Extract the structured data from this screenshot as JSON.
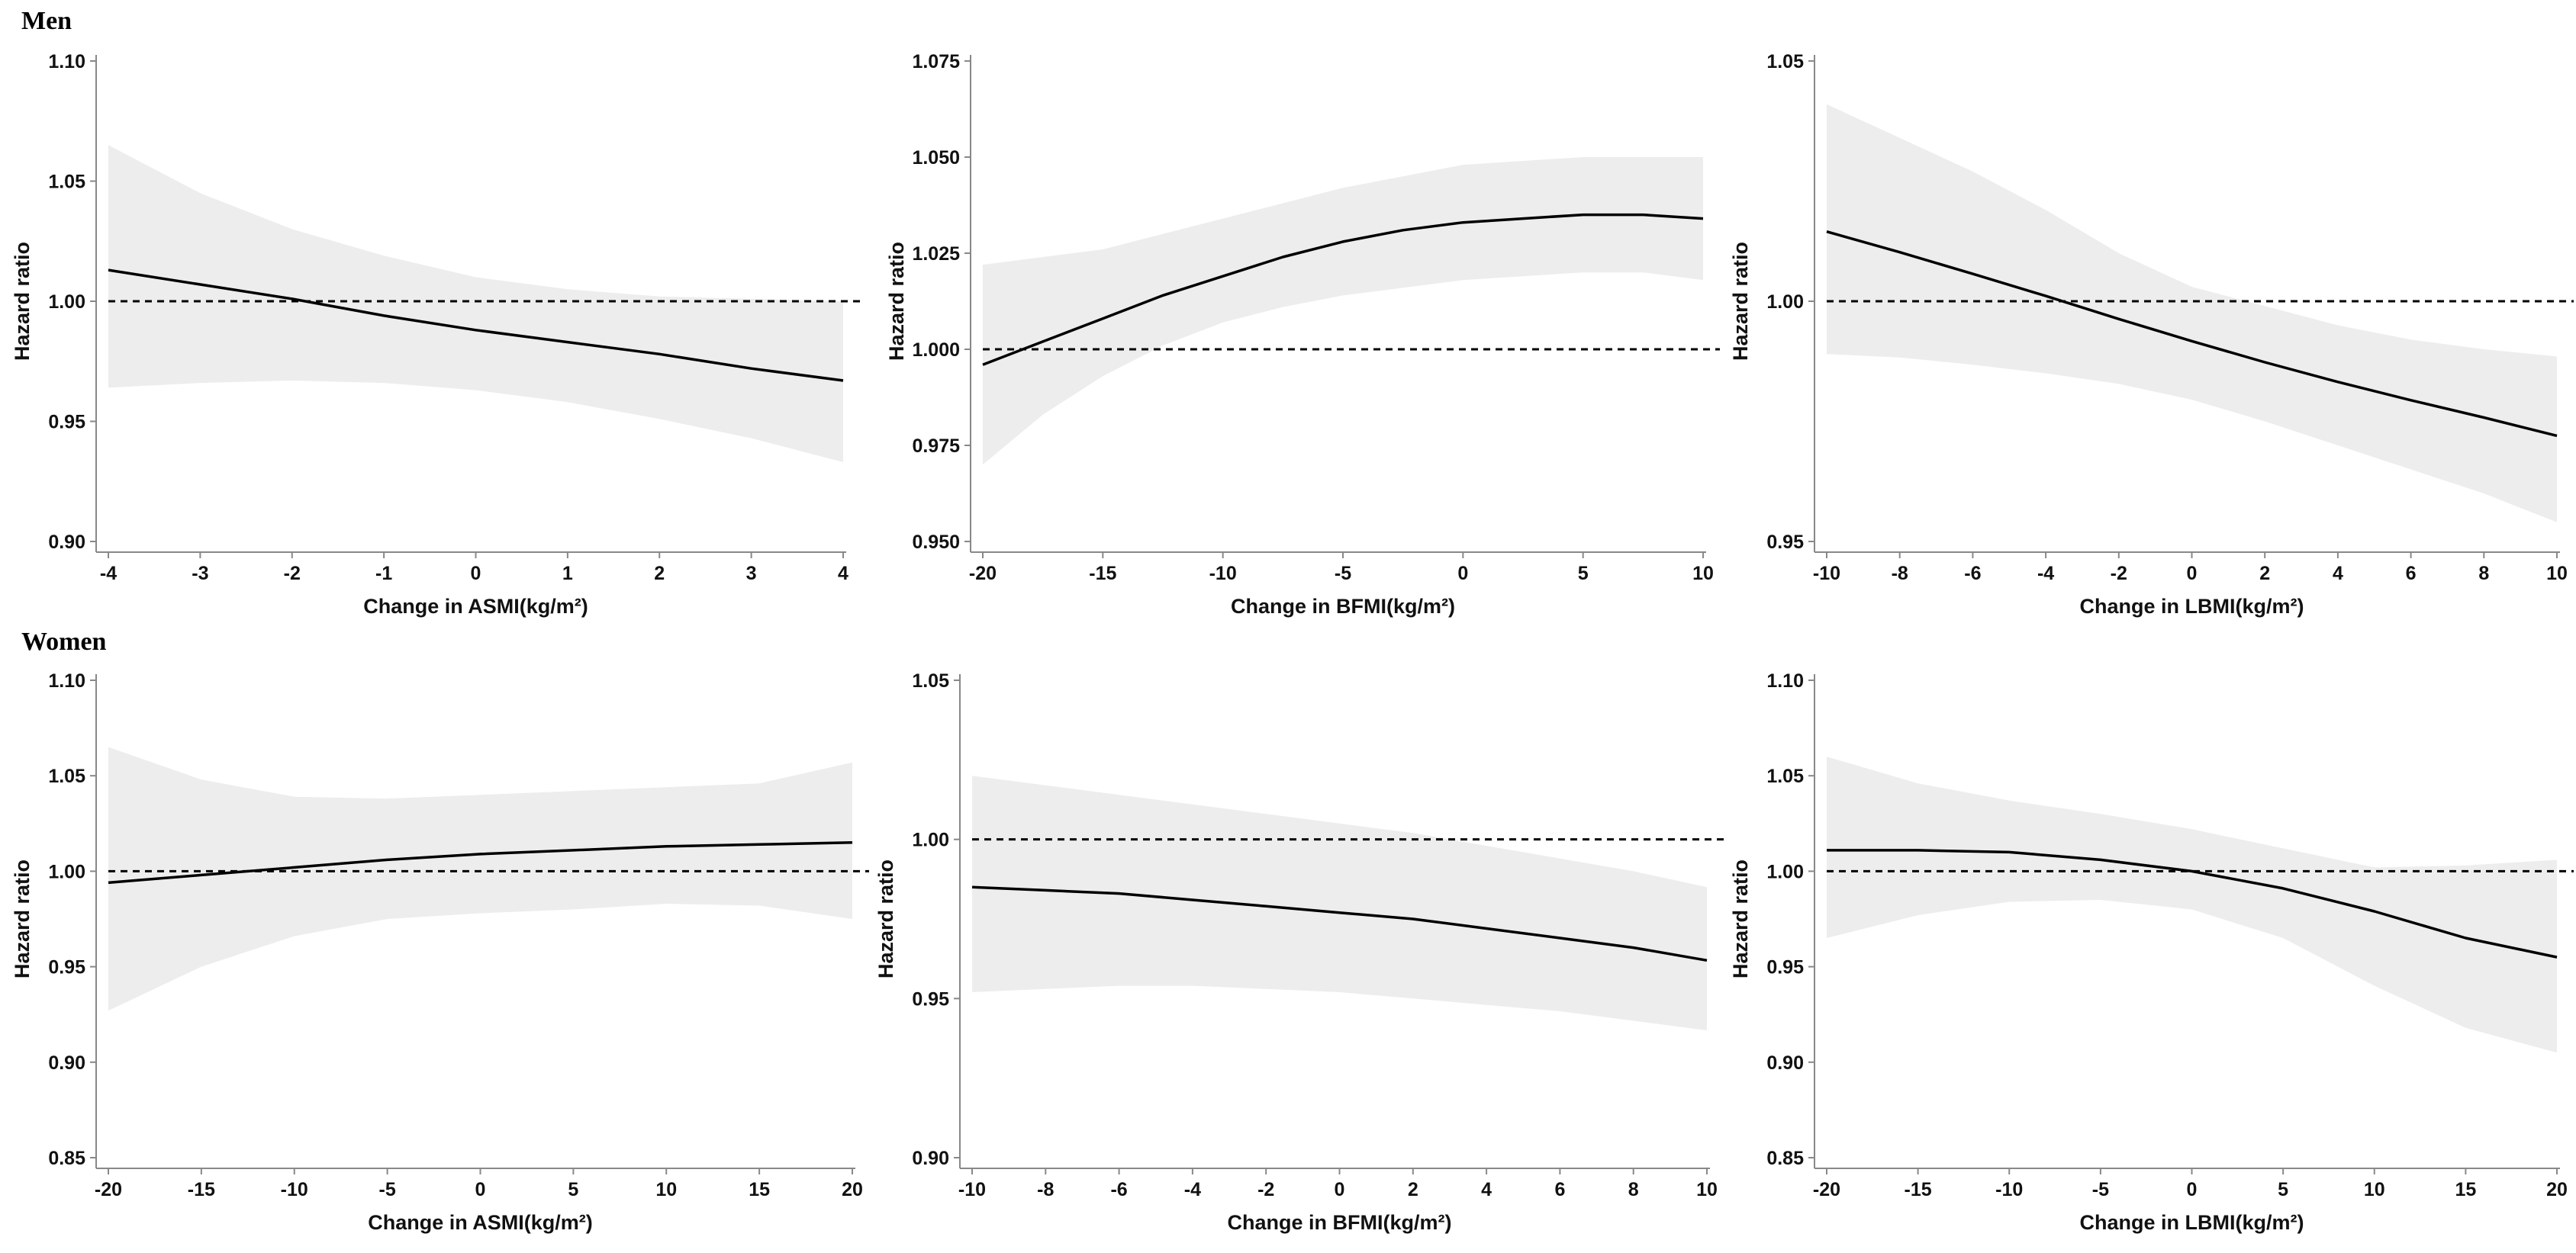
{
  "figure": {
    "groups": [
      {
        "label": "Men"
      },
      {
        "label": "Women"
      }
    ]
  },
  "colors": {
    "band": "#ededed",
    "line": "#000000",
    "axis": "#888888",
    "reference": "#000000"
  },
  "chart_data": [
    {
      "type": "line",
      "group": "Men",
      "panel": "men-asmi",
      "title": "",
      "xlabel": "Change in ASMI(kg/m²)",
      "ylabel": "Hazard ratio",
      "xlim": [
        -4,
        4
      ],
      "ylim": [
        0.9,
        1.1
      ],
      "xticks": [
        -4,
        -3,
        -2,
        -1,
        0,
        1,
        2,
        3,
        4
      ],
      "yticks": [
        "0.90",
        "0.95",
        "1.00",
        "1.05",
        "1.10"
      ],
      "reference_line": 1.0,
      "x": [
        -4,
        -3,
        -2,
        -1,
        0,
        1,
        2,
        3,
        4
      ],
      "series": [
        {
          "name": "Hazard ratio",
          "values": [
            1.013,
            1.007,
            1.001,
            0.994,
            0.988,
            0.983,
            0.978,
            0.972,
            0.967
          ]
        },
        {
          "name": "Lower 95% CI",
          "values": [
            0.964,
            0.966,
            0.967,
            0.966,
            0.963,
            0.958,
            0.951,
            0.943,
            0.933
          ]
        },
        {
          "name": "Upper 95% CI",
          "values": [
            1.065,
            1.045,
            1.03,
            1.019,
            1.01,
            1.005,
            1.002,
            1.001,
            1.0
          ]
        }
      ]
    },
    {
      "type": "line",
      "group": "Men",
      "panel": "men-bfmi",
      "title": "",
      "xlabel": "Change in BFMI(kg/m²)",
      "ylabel": "Hazard ratio",
      "xlim": [
        -20,
        10
      ],
      "ylim": [
        0.95,
        1.075
      ],
      "xticks": [
        -20,
        -15,
        -10,
        -5,
        0,
        5,
        10
      ],
      "yticks": [
        "0.950",
        "0.975",
        "1.000",
        "1.025",
        "1.050",
        "1.075"
      ],
      "reference_line": 1.0,
      "x": [
        -20,
        -17.5,
        -15,
        -12.5,
        -10,
        -7.5,
        -5,
        -2.5,
        0,
        2.5,
        5,
        7.5,
        10
      ],
      "series": [
        {
          "name": "Hazard ratio",
          "values": [
            0.996,
            1.002,
            1.008,
            1.014,
            1.019,
            1.024,
            1.028,
            1.031,
            1.033,
            1.034,
            1.035,
            1.035,
            1.034
          ]
        },
        {
          "name": "Lower 95% CI",
          "values": [
            0.97,
            0.983,
            0.993,
            1.001,
            1.007,
            1.011,
            1.014,
            1.016,
            1.018,
            1.019,
            1.02,
            1.02,
            1.018
          ]
        },
        {
          "name": "Upper 95% CI",
          "values": [
            1.022,
            1.024,
            1.026,
            1.03,
            1.034,
            1.038,
            1.042,
            1.045,
            1.048,
            1.049,
            1.05,
            1.05,
            1.05
          ]
        }
      ]
    },
    {
      "type": "line",
      "group": "Men",
      "panel": "men-lbmi",
      "title": "",
      "xlabel": "Change in LBMI(kg/m²)",
      "ylabel": "Hazard ratio",
      "xlim": [
        -10,
        10
      ],
      "ylim": [
        0.95,
        1.05
      ],
      "xticks": [
        -10,
        -8,
        -6,
        -4,
        -2,
        0,
        2,
        4,
        6,
        8,
        10
      ],
      "yticks": [
        "0.95",
        "1.00",
        "1.05"
      ],
      "reference_line": 1.0,
      "x": [
        -10,
        -8,
        -6,
        -4,
        -2,
        0,
        2,
        4,
        6,
        8,
        10
      ],
      "series": [
        {
          "name": "Hazard ratio",
          "values": [
            1.0145,
            1.0102,
            1.0057,
            1.0011,
            0.9963,
            0.9917,
            0.9873,
            0.9832,
            0.9794,
            0.9758,
            0.972
          ]
        },
        {
          "name": "Lower 95% CI",
          "values": [
            0.989,
            0.9883,
            0.9868,
            0.985,
            0.9828,
            0.9795,
            0.975,
            0.97,
            0.965,
            0.96,
            0.954
          ]
        },
        {
          "name": "Upper 95% CI",
          "values": [
            1.041,
            1.034,
            1.027,
            1.019,
            1.01,
            1.003,
            0.999,
            0.995,
            0.992,
            0.99,
            0.9885
          ]
        }
      ]
    },
    {
      "type": "line",
      "group": "Women",
      "panel": "women-asmi",
      "title": "",
      "xlabel": "Change in ASMI(kg/m²)",
      "ylabel": "Hazard ratio",
      "xlim": [
        -20,
        20
      ],
      "ylim": [
        0.85,
        1.1
      ],
      "xticks": [
        -20,
        -15,
        -10,
        -5,
        0,
        5,
        10,
        15,
        20
      ],
      "yticks": [
        "0.85",
        "0.90",
        "0.95",
        "1.00",
        "1.05",
        "1.10"
      ],
      "reference_line": 1.0,
      "x": [
        -20,
        -15,
        -10,
        -5,
        0,
        5,
        10,
        15,
        20
      ],
      "series": [
        {
          "name": "Hazard ratio",
          "values": [
            0.994,
            0.998,
            1.002,
            1.006,
            1.009,
            1.011,
            1.013,
            1.014,
            1.015
          ]
        },
        {
          "name": "Lower 95% CI",
          "values": [
            0.927,
            0.95,
            0.966,
            0.975,
            0.978,
            0.98,
            0.983,
            0.982,
            0.975
          ]
        },
        {
          "name": "Upper 95% CI",
          "values": [
            1.065,
            1.048,
            1.039,
            1.038,
            1.04,
            1.042,
            1.044,
            1.046,
            1.057
          ]
        }
      ]
    },
    {
      "type": "line",
      "group": "Women",
      "panel": "women-bfmi",
      "title": "",
      "xlabel": "Change in BFMI(kg/m²)",
      "ylabel": "Hazard ratio",
      "xlim": [
        -10,
        10
      ],
      "ylim": [
        0.9,
        1.05
      ],
      "xticks": [
        -10,
        -8,
        -6,
        -4,
        -2,
        0,
        2,
        4,
        6,
        8,
        10
      ],
      "yticks": [
        "0.90",
        "0.95",
        "1.00",
        "1.05"
      ],
      "reference_line": 1.0,
      "x": [
        -10,
        -8,
        -6,
        -4,
        -2,
        0,
        2,
        4,
        6,
        8,
        10
      ],
      "series": [
        {
          "name": "Hazard ratio",
          "values": [
            0.985,
            0.984,
            0.983,
            0.981,
            0.979,
            0.977,
            0.975,
            0.972,
            0.969,
            0.966,
            0.962
          ]
        },
        {
          "name": "Lower 95% CI",
          "values": [
            0.952,
            0.953,
            0.954,
            0.954,
            0.953,
            0.952,
            0.95,
            0.948,
            0.946,
            0.943,
            0.94
          ]
        },
        {
          "name": "Upper 95% CI",
          "values": [
            1.02,
            1.017,
            1.014,
            1.011,
            1.008,
            1.005,
            1.002,
            0.998,
            0.994,
            0.99,
            0.985
          ]
        }
      ]
    },
    {
      "type": "line",
      "group": "Women",
      "panel": "women-lbmi",
      "title": "",
      "xlabel": "Change in LBMI(kg/m²)",
      "ylabel": "Hazard ratio",
      "xlim": [
        -20,
        20
      ],
      "ylim": [
        0.85,
        1.1
      ],
      "xticks": [
        -20,
        -15,
        -10,
        -5,
        0,
        5,
        10,
        15,
        20
      ],
      "yticks": [
        "0.85",
        "0.90",
        "0.95",
        "1.00",
        "1.05",
        "1.10"
      ],
      "reference_line": 1.0,
      "x": [
        -20,
        -15,
        -10,
        -5,
        0,
        5,
        10,
        15,
        20
      ],
      "series": [
        {
          "name": "Hazard ratio",
          "values": [
            1.011,
            1.011,
            1.01,
            1.006,
            1.0,
            0.991,
            0.979,
            0.965,
            0.955
          ]
        },
        {
          "name": "Lower 95% CI",
          "values": [
            0.965,
            0.977,
            0.984,
            0.985,
            0.98,
            0.965,
            0.94,
            0.918,
            0.905
          ]
        },
        {
          "name": "Upper 95% CI",
          "values": [
            1.06,
            1.046,
            1.037,
            1.03,
            1.022,
            1.012,
            1.002,
            1.003,
            1.006
          ]
        }
      ]
    }
  ]
}
